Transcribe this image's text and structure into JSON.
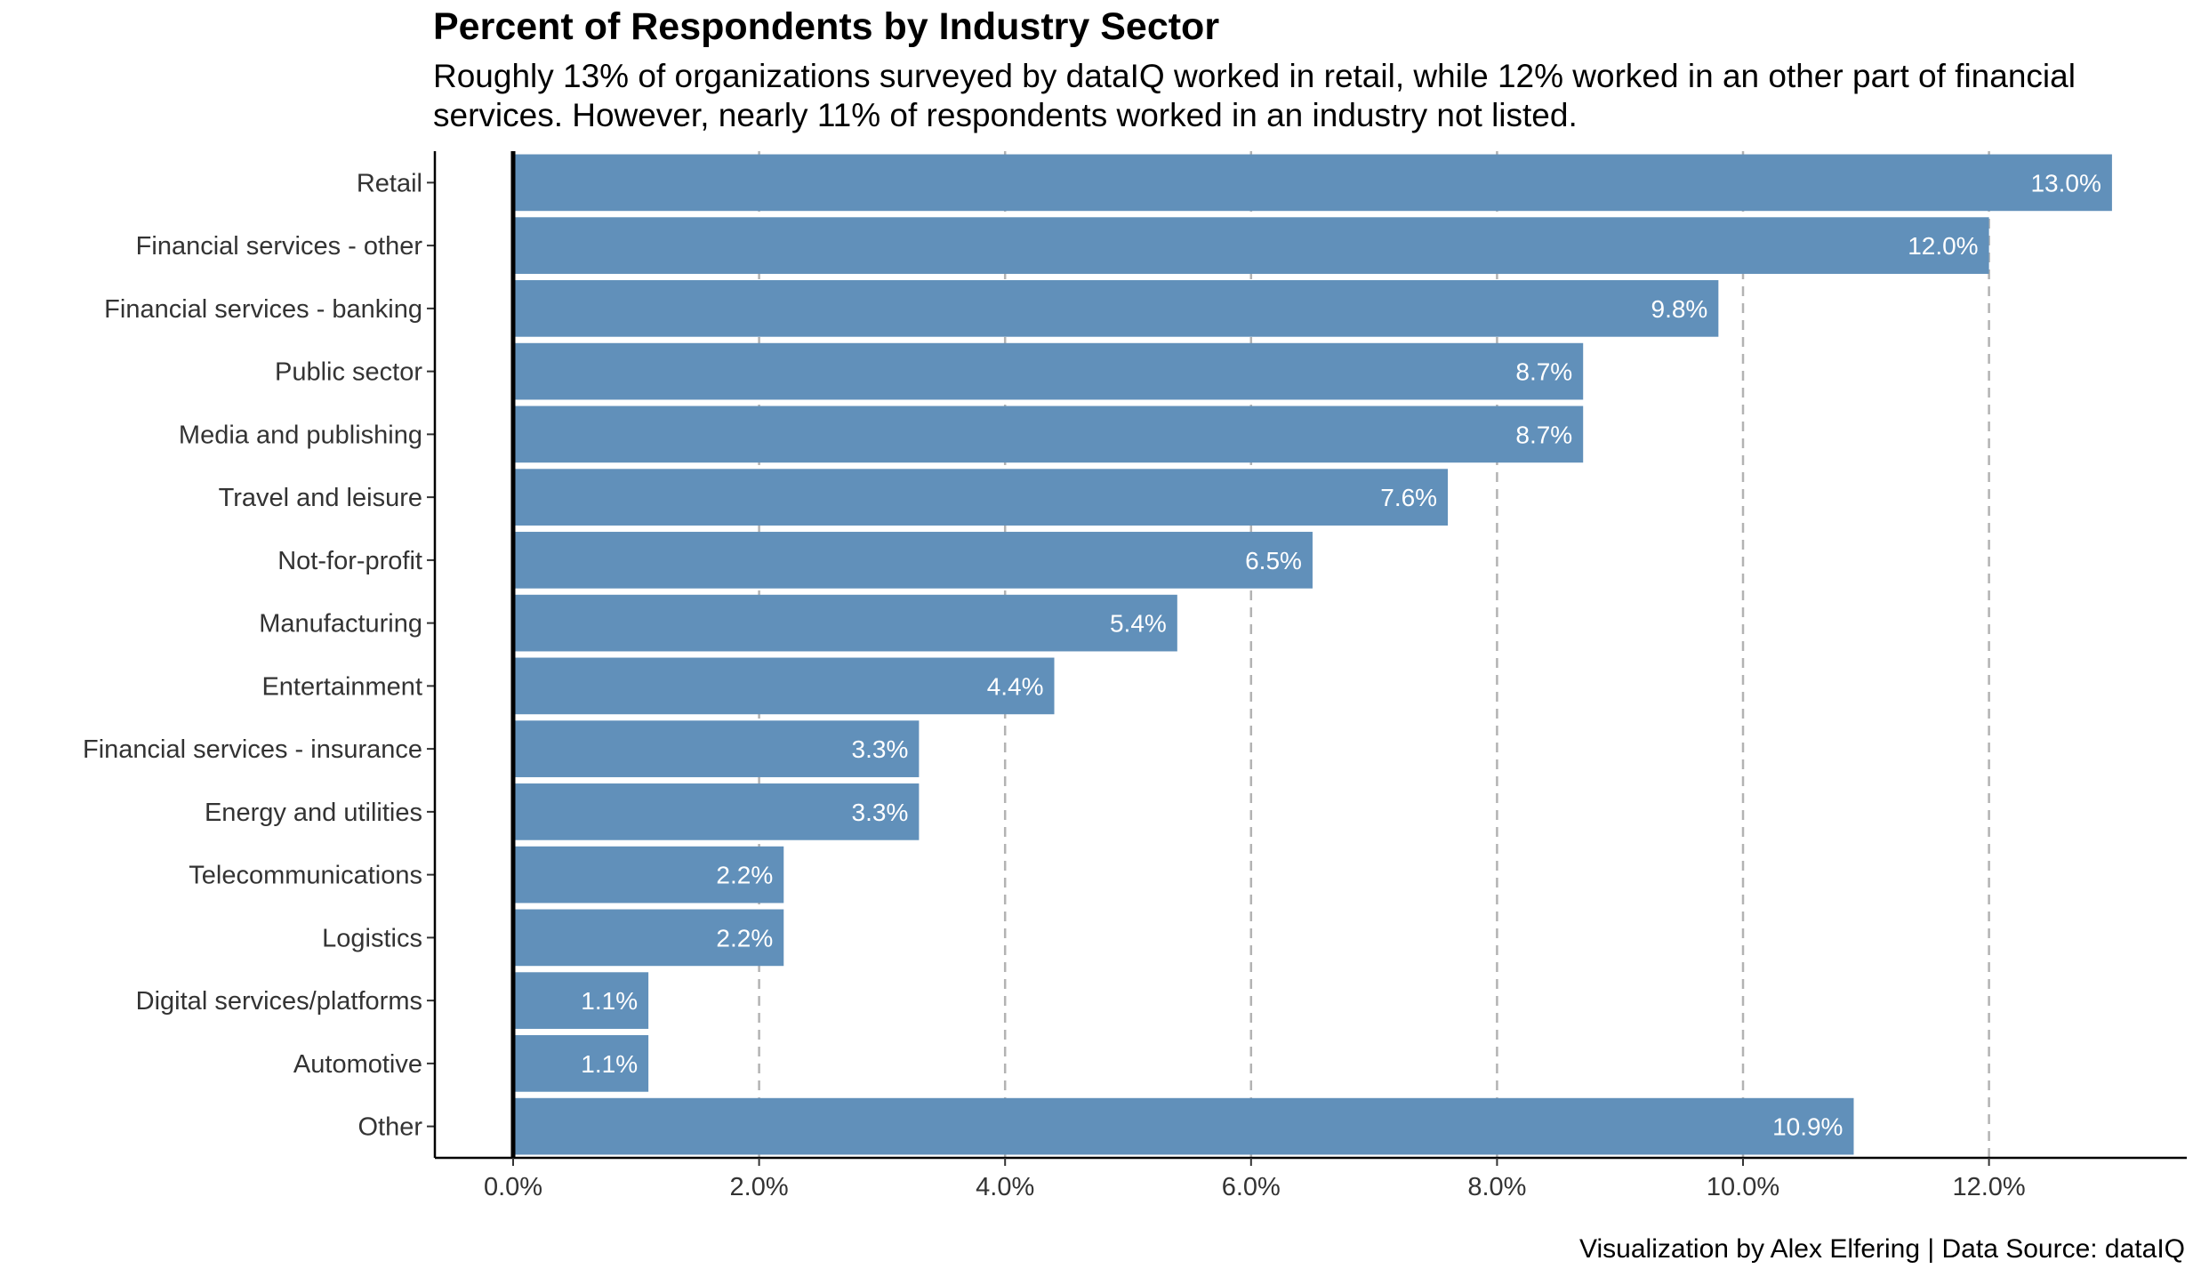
{
  "chart_data": {
    "type": "bar",
    "orientation": "horizontal",
    "title": "Percent of Respondents by Industry Sector",
    "subtitle": "Roughly 13% of organizations surveyed by dataIQ worked in retail, while 12% worked in an other part of financial services. However, nearly 11% of respondents worked in an industry not listed.",
    "caption": "Visualization by Alex Elfering | Data Source: dataIQ",
    "categories": [
      "Retail",
      "Financial services - other",
      "Financial services - banking",
      "Public sector",
      "Media and publishing",
      "Travel and leisure",
      "Not-for-profit",
      "Manufacturing",
      "Entertainment",
      "Financial services - insurance",
      "Energy and utilities",
      "Telecommunications",
      "Logistics",
      "Digital services/platforms",
      "Automotive",
      "Other"
    ],
    "values": [
      13.0,
      12.0,
      9.8,
      8.7,
      8.7,
      7.6,
      6.5,
      5.4,
      4.4,
      3.3,
      3.3,
      2.2,
      2.2,
      1.1,
      1.1,
      10.9
    ],
    "value_labels": [
      "13.0%",
      "12.0%",
      "9.8%",
      "8.7%",
      "8.7%",
      "7.6%",
      "6.5%",
      "5.4%",
      "4.4%",
      "3.3%",
      "3.3%",
      "2.2%",
      "2.2%",
      "1.1%",
      "1.1%",
      "10.9%"
    ],
    "xticks": [
      0,
      2,
      4,
      6,
      8,
      10,
      12
    ],
    "xtick_labels": [
      "0.0%",
      "2.0%",
      "4.0%",
      "6.0%",
      "8.0%",
      "10.0%",
      "12.0%"
    ],
    "xlim": [
      -0.64,
      13.64
    ],
    "xlabel": "",
    "ylabel": "",
    "grid": "vertical dashed",
    "legend": "none",
    "bar_color": "#6190BA",
    "grid_color": "#B3B3B3"
  }
}
